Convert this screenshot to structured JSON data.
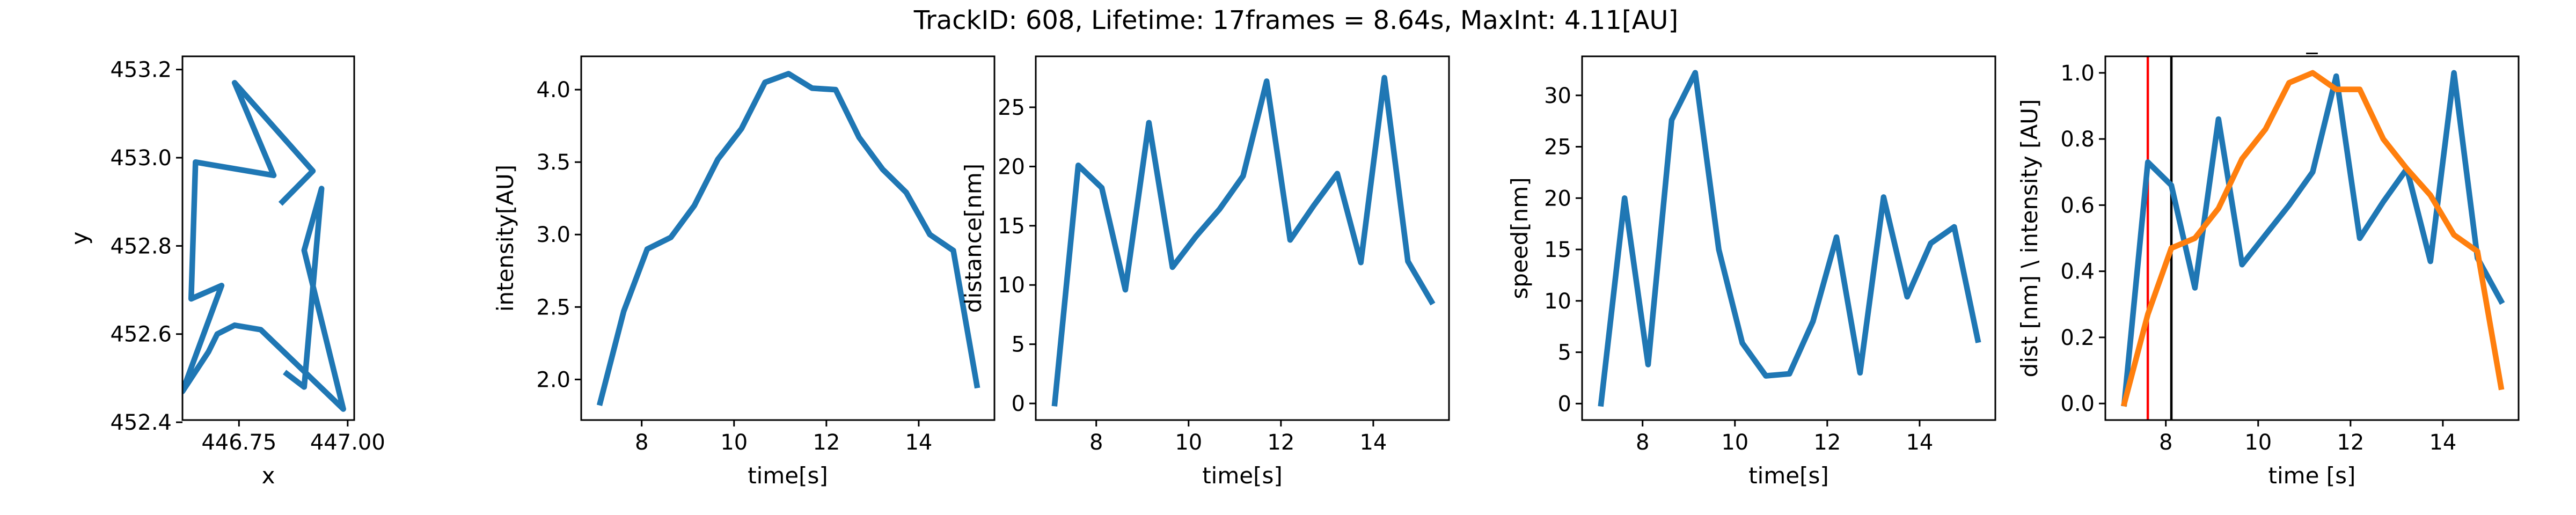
{
  "figure_title": "TrackID: 608, Lifetime: 17frames = 8.64s, MaxInt: 4.11[AU]",
  "colors": {
    "series_blue": "#1f77b4",
    "series_orange": "#ff7f0e",
    "vline_red": "#ff0000",
    "vline_black": "#000000"
  },
  "chart_data": [
    {
      "type": "line",
      "title": "",
      "xlabel": "x",
      "ylabel": "y",
      "xlim": [
        446.62,
        447.015
      ],
      "ylim": [
        452.405,
        453.23
      ],
      "xticks": [
        446.75,
        447.0
      ],
      "xtick_labels": [
        "446.75",
        "447.00"
      ],
      "yticks": [
        452.4,
        452.6,
        452.8,
        453.0,
        453.2
      ],
      "ytick_labels": [
        "452.4",
        "452.6",
        "452.8",
        "453.0",
        "453.2"
      ],
      "grid": false,
      "series": [
        {
          "color": "#1f77b4",
          "x": [
            446.85,
            446.92,
            446.74,
            446.83,
            446.65,
            446.64,
            446.71,
            446.62,
            446.68,
            446.7,
            446.74,
            446.8,
            446.99,
            446.9,
            446.94,
            446.9,
            446.86
          ],
          "y": [
            452.9,
            452.97,
            453.17,
            452.96,
            452.99,
            452.68,
            452.71,
            452.47,
            452.56,
            452.6,
            452.62,
            452.61,
            452.43,
            452.79,
            452.93,
            452.48,
            452.51
          ]
        }
      ]
    },
    {
      "type": "line",
      "title": "",
      "xlabel": "time[s]",
      "ylabel": "intensity[AU]",
      "xlim": [
        6.69,
        15.64
      ],
      "ylim": [
        1.72,
        4.23
      ],
      "xticks": [
        8,
        10,
        12,
        14
      ],
      "xtick_labels": [
        "8",
        "10",
        "12",
        "14"
      ],
      "yticks": [
        2.0,
        2.5,
        3.0,
        3.5,
        4.0
      ],
      "ytick_labels": [
        "2.0",
        "2.5",
        "3.0",
        "3.5",
        "4.0"
      ],
      "grid": false,
      "series": [
        {
          "color": "#1f77b4",
          "x": [
            7.1,
            7.61,
            8.12,
            8.63,
            9.14,
            9.65,
            10.16,
            10.67,
            11.18,
            11.69,
            12.2,
            12.71,
            13.22,
            13.73,
            14.24,
            14.75,
            15.26
          ],
          "y": [
            1.84,
            2.47,
            2.9,
            2.98,
            3.2,
            3.52,
            3.73,
            4.05,
            4.11,
            4.01,
            4.0,
            3.67,
            3.45,
            3.29,
            3.0,
            2.89,
            1.96
          ]
        }
      ]
    },
    {
      "type": "line",
      "title": "",
      "xlabel": "time[s]",
      "ylabel": "distance[nm]",
      "xlim": [
        6.69,
        15.64
      ],
      "ylim": [
        -1.4,
        29.3
      ],
      "xticks": [
        8,
        10,
        12,
        14
      ],
      "xtick_labels": [
        "8",
        "10",
        "12",
        "14"
      ],
      "yticks": [
        0,
        5,
        10,
        15,
        20,
        25
      ],
      "ytick_labels": [
        "0",
        "5",
        "10",
        "15",
        "20",
        "25"
      ],
      "grid": false,
      "series": [
        {
          "color": "#1f77b4",
          "x": [
            7.1,
            7.61,
            8.12,
            8.63,
            9.14,
            9.65,
            10.16,
            10.67,
            11.18,
            11.69,
            12.2,
            12.71,
            13.22,
            13.73,
            14.24,
            14.75,
            15.26
          ],
          "y": [
            0,
            20.1,
            18.2,
            9.6,
            23.7,
            11.5,
            14.1,
            16.4,
            19.2,
            27.2,
            13.8,
            16.7,
            19.4,
            11.9,
            27.5,
            12.0,
            8.6
          ]
        }
      ]
    },
    {
      "type": "line",
      "title": "",
      "xlabel": "time[s]",
      "ylabel": "speed[nm]",
      "xlim": [
        6.69,
        15.64
      ],
      "ylim": [
        -1.6,
        33.8
      ],
      "xticks": [
        8,
        10,
        12,
        14
      ],
      "xtick_labels": [
        "8",
        "10",
        "12",
        "14"
      ],
      "yticks": [
        0,
        5,
        10,
        15,
        20,
        25,
        30
      ],
      "ytick_labels": [
        "0",
        "5",
        "10",
        "15",
        "20",
        "25",
        "30"
      ],
      "grid": false,
      "series": [
        {
          "color": "#1f77b4",
          "x": [
            7.1,
            7.61,
            8.12,
            8.63,
            9.14,
            9.65,
            10.16,
            10.67,
            11.18,
            11.69,
            12.2,
            12.71,
            13.22,
            13.73,
            14.24,
            14.75,
            15.26
          ],
          "y": [
            0,
            20.0,
            3.8,
            27.6,
            32.2,
            15.0,
            5.9,
            2.7,
            2.9,
            8.0,
            16.2,
            3.0,
            20.1,
            10.4,
            15.6,
            17.2,
            6.2
          ]
        }
      ]
    },
    {
      "type": "line",
      "title": "_",
      "xlabel": "time [s]",
      "ylabel": "dist [nm] \\ intensity [AU]",
      "xlim": [
        6.69,
        15.64
      ],
      "ylim": [
        -0.05,
        1.05
      ],
      "xticks": [
        8,
        10,
        12,
        14
      ],
      "xtick_labels": [
        "8",
        "10",
        "12",
        "14"
      ],
      "yticks": [
        0.0,
        0.2,
        0.4,
        0.6,
        0.8,
        1.0
      ],
      "ytick_labels": [
        "0.0",
        "0.2",
        "0.4",
        "0.6",
        "0.8",
        "1.0"
      ],
      "grid": false,
      "vlines": [
        {
          "x": 7.61,
          "color": "#ff0000"
        },
        {
          "x": 8.12,
          "color": "#000000"
        }
      ],
      "series": [
        {
          "color": "#1f77b4",
          "x": [
            7.1,
            7.61,
            8.12,
            8.63,
            9.14,
            9.65,
            10.16,
            10.67,
            11.18,
            11.69,
            12.2,
            12.71,
            13.22,
            13.73,
            14.24,
            14.75,
            15.26
          ],
          "y": [
            0.0,
            0.73,
            0.66,
            0.35,
            0.86,
            0.42,
            0.51,
            0.6,
            0.7,
            0.99,
            0.5,
            0.61,
            0.71,
            0.43,
            1.0,
            0.44,
            0.31
          ]
        },
        {
          "color": "#ff7f0e",
          "x": [
            7.1,
            7.61,
            8.12,
            8.63,
            9.14,
            9.65,
            10.16,
            10.67,
            11.18,
            11.69,
            12.2,
            12.71,
            13.22,
            13.73,
            14.24,
            14.75,
            15.26
          ],
          "y": [
            0.0,
            0.27,
            0.47,
            0.5,
            0.59,
            0.74,
            0.83,
            0.97,
            1.0,
            0.95,
            0.95,
            0.8,
            0.71,
            0.63,
            0.51,
            0.46,
            0.05
          ]
        }
      ]
    }
  ]
}
